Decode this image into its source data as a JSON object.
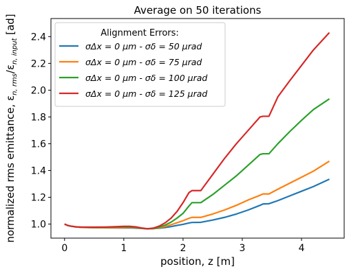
{
  "chart_data": {
    "type": "line",
    "title": "Average on 50 iterations",
    "xlabel": "position, z [m]",
    "ylabel": "normalized rms emittance, ε",
    "ylabel_sub": "n, rms",
    "ylabel_mid": "/ε",
    "ylabel_sub2": "n, input",
    "ylabel_tail": " [ad]",
    "xlim": [
      -0.23,
      4.72
    ],
    "ylim": [
      0.895,
      2.535
    ],
    "xticks": [
      0,
      1,
      2,
      3,
      4
    ],
    "xtick_labels": [
      "0",
      "1",
      "2",
      "3",
      "4"
    ],
    "yticks": [
      1.0,
      1.2,
      1.4,
      1.6,
      1.8,
      2.0,
      2.2,
      2.4
    ],
    "ytick_labels": [
      "1.0",
      "1.2",
      "1.4",
      "1.6",
      "1.8",
      "2.0",
      "2.2",
      "2.4"
    ],
    "grid": false,
    "legend": {
      "title": "Alignment Errors:",
      "placement": "top-left"
    },
    "series": [
      {
        "name": "σΔx = 0 μm - σδ = 50 μrad",
        "color": "#1f77b4",
        "x": [
          0,
          0.05,
          0.1,
          0.2,
          0.3,
          0.5,
          0.7,
          0.9,
          1.0,
          1.1,
          1.2,
          1.3,
          1.4,
          1.5,
          1.6,
          1.7,
          1.8,
          1.9,
          2.0,
          2.1,
          2.15,
          2.3,
          2.5,
          2.7,
          2.9,
          3.1,
          3.3,
          3.35,
          3.45,
          3.6,
          3.8,
          4.0,
          4.2,
          4.47
        ],
        "y": [
          1.0,
          0.99,
          0.985,
          0.978,
          0.975,
          0.973,
          0.972,
          0.971,
          0.971,
          0.972,
          0.97,
          0.967,
          0.965,
          0.966,
          0.969,
          0.974,
          0.981,
          0.99,
          0.998,
          1.008,
          1.012,
          1.013,
          1.03,
          1.05,
          1.075,
          1.105,
          1.14,
          1.15,
          1.152,
          1.175,
          1.21,
          1.245,
          1.28,
          1.335
        ]
      },
      {
        "name": "σΔx = 0 μm - σδ = 75 μrad",
        "color": "#ff7f0e",
        "x": [
          0,
          0.05,
          0.1,
          0.2,
          0.3,
          0.5,
          0.7,
          0.9,
          1.0,
          1.1,
          1.2,
          1.3,
          1.4,
          1.5,
          1.6,
          1.7,
          1.8,
          1.9,
          2.0,
          2.1,
          2.15,
          2.3,
          2.5,
          2.7,
          2.9,
          3.1,
          3.3,
          3.35,
          3.45,
          3.6,
          3.8,
          4.0,
          4.2,
          4.47
        ],
        "y": [
          1.0,
          0.99,
          0.985,
          0.978,
          0.975,
          0.973,
          0.973,
          0.973,
          0.974,
          0.975,
          0.973,
          0.968,
          0.964,
          0.966,
          0.972,
          0.982,
          0.995,
          1.01,
          1.025,
          1.043,
          1.05,
          1.05,
          1.075,
          1.105,
          1.14,
          1.18,
          1.215,
          1.225,
          1.225,
          1.26,
          1.305,
          1.35,
          1.395,
          1.47
        ]
      },
      {
        "name": "σΔx = 0 μm - σδ = 100 μrad",
        "color": "#2ca02c",
        "x": [
          0,
          0.05,
          0.1,
          0.2,
          0.3,
          0.5,
          0.7,
          0.9,
          1.0,
          1.1,
          1.2,
          1.3,
          1.4,
          1.5,
          1.6,
          1.7,
          1.8,
          1.9,
          2.0,
          2.1,
          2.15,
          2.3,
          2.5,
          2.7,
          2.9,
          3.1,
          3.3,
          3.35,
          3.45,
          3.6,
          3.8,
          4.0,
          4.2,
          4.47
        ],
        "y": [
          1.0,
          0.99,
          0.985,
          0.978,
          0.976,
          0.975,
          0.976,
          0.978,
          0.979,
          0.979,
          0.976,
          0.969,
          0.964,
          0.967,
          0.977,
          0.993,
          1.015,
          1.045,
          1.08,
          1.135,
          1.16,
          1.16,
          1.22,
          1.29,
          1.36,
          1.44,
          1.52,
          1.525,
          1.525,
          1.6,
          1.69,
          1.775,
          1.855,
          1.935
        ]
      },
      {
        "name": "σΔx = 0 μm - σδ = 125 μrad",
        "color": "#d62728",
        "x": [
          0,
          0.05,
          0.1,
          0.2,
          0.3,
          0.5,
          0.7,
          0.9,
          1.0,
          1.1,
          1.2,
          1.3,
          1.4,
          1.5,
          1.6,
          1.7,
          1.8,
          1.9,
          2.0,
          2.1,
          2.15,
          2.3,
          2.5,
          2.7,
          2.9,
          3.1,
          3.3,
          3.35,
          3.45,
          3.6,
          3.8,
          4.0,
          4.2,
          4.47
        ],
        "y": [
          1.0,
          0.99,
          0.985,
          0.979,
          0.977,
          0.977,
          0.978,
          0.981,
          0.983,
          0.983,
          0.979,
          0.971,
          0.965,
          0.97,
          0.985,
          1.01,
          1.045,
          1.095,
          1.16,
          1.235,
          1.25,
          1.25,
          1.37,
          1.49,
          1.6,
          1.7,
          1.8,
          1.805,
          1.805,
          1.95,
          2.07,
          2.185,
          2.3,
          2.43
        ]
      }
    ]
  }
}
